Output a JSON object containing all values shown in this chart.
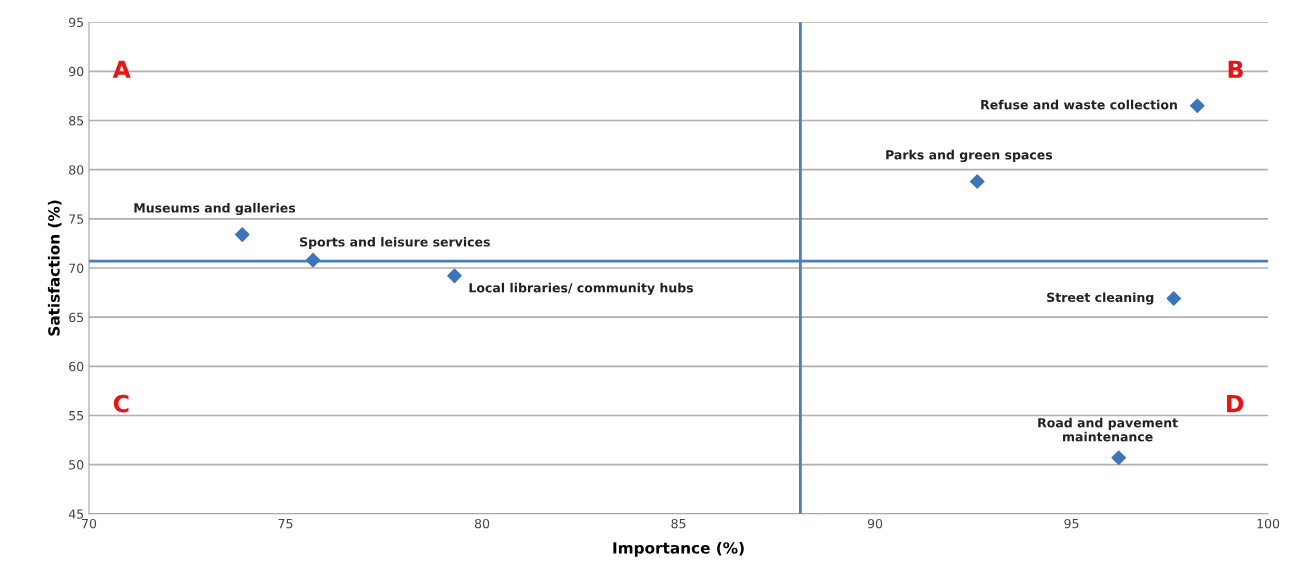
{
  "chart_data": {
    "type": "scatter",
    "xlabel": "Importance (%)",
    "ylabel": "Satisfaction (%)",
    "x": [
      73.9,
      75.7,
      79.3,
      98.2,
      92.6,
      97.6,
      96.2
    ],
    "series": [
      {
        "color": "#3c74bd",
        "values": [
          73.4,
          70.8,
          69.2,
          86.5,
          78.8,
          66.9,
          50.7
        ]
      }
    ],
    "marker": "diamond",
    "grid": "y",
    "xlim": [
      70,
      100
    ],
    "xticks": [
      70,
      75,
      80,
      85,
      90,
      95,
      100
    ],
    "ylim": [
      45,
      95
    ],
    "yticks": [
      45,
      50,
      55,
      60,
      65,
      70,
      75,
      80,
      85,
      90,
      95
    ],
    "ref_lines": [
      {
        "axis": "x",
        "value": 88.1,
        "color": "#4a7ebb"
      },
      {
        "axis": "y",
        "value": 70.7,
        "color": "#4a7ebb"
      }
    ],
    "annotations": [
      {
        "text": "Museums and galleries",
        "x": 73.9,
        "y": 73.4
      },
      {
        "text": "Sports and leisure services",
        "x": 75.7,
        "y": 70.8
      },
      {
        "text": "Local libraries/ community hubs",
        "x": 79.3,
        "y": 69.2
      },
      {
        "text": "Refuse and waste collection",
        "x": 98.2,
        "y": 86.5
      },
      {
        "text": "Parks and green spaces",
        "x": 92.6,
        "y": 78.8
      },
      {
        "text": "Street cleaning",
        "x": 97.6,
        "y": 66.9
      },
      {
        "text": "Road and pavement\nmaintenance",
        "x": 96.2,
        "y": 50.7
      },
      "A",
      "B",
      "C",
      "D"
    ]
  }
}
